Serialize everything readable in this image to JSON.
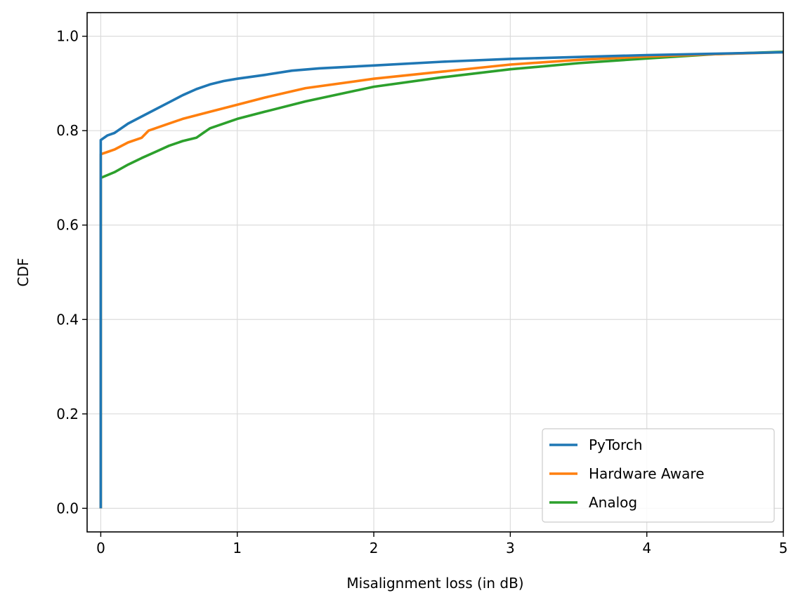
{
  "chart_data": {
    "type": "line",
    "title": "",
    "xlabel": "Misalignment loss (in dB)",
    "ylabel": "CDF",
    "xlim": [
      -0.1,
      5
    ],
    "ylim": [
      -0.05,
      1.05
    ],
    "xticks": [
      0,
      1,
      2,
      3,
      4,
      5
    ],
    "xtick_labels": [
      "0",
      "1",
      "2",
      "3",
      "4",
      "5"
    ],
    "yticks": [
      0.0,
      0.2,
      0.4,
      0.6,
      0.8,
      1.0
    ],
    "ytick_labels": [
      "0.0",
      "0.2",
      "0.4",
      "0.6",
      "0.8",
      "1.0"
    ],
    "grid": true,
    "legend_position": "lower-right",
    "series": [
      {
        "name": "PyTorch",
        "color": "#1f77b4",
        "x": [
          0,
          0,
          0.05,
          0.1,
          0.2,
          0.3,
          0.4,
          0.5,
          0.6,
          0.7,
          0.8,
          0.9,
          1.0,
          1.2,
          1.4,
          1.6,
          2.0,
          2.5,
          3.0,
          3.5,
          4.0,
          4.5,
          5.0
        ],
        "y": [
          0.0,
          0.78,
          0.79,
          0.795,
          0.815,
          0.83,
          0.845,
          0.86,
          0.875,
          0.888,
          0.898,
          0.905,
          0.91,
          0.918,
          0.927,
          0.932,
          0.938,
          0.946,
          0.952,
          0.956,
          0.96,
          0.963,
          0.966
        ]
      },
      {
        "name": "Hardware Aware",
        "color": "#ff7f0e",
        "x": [
          0,
          0,
          0.05,
          0.1,
          0.2,
          0.3,
          0.35,
          0.5,
          0.6,
          0.8,
          1.0,
          1.2,
          1.5,
          2.0,
          2.5,
          3.0,
          3.5,
          4.0,
          4.5,
          5.0
        ],
        "y": [
          0.0,
          0.75,
          0.755,
          0.76,
          0.775,
          0.785,
          0.8,
          0.815,
          0.825,
          0.84,
          0.855,
          0.87,
          0.89,
          0.91,
          0.925,
          0.94,
          0.95,
          0.957,
          0.962,
          0.966
        ]
      },
      {
        "name": "Analog",
        "color": "#2ca02c",
        "x": [
          0,
          0,
          0.1,
          0.2,
          0.3,
          0.4,
          0.5,
          0.6,
          0.7,
          0.75,
          0.8,
          1.0,
          1.2,
          1.5,
          2.0,
          2.5,
          3.0,
          3.5,
          4.0,
          4.5,
          5.0
        ],
        "y": [
          0.0,
          0.7,
          0.712,
          0.728,
          0.742,
          0.755,
          0.768,
          0.778,
          0.785,
          0.795,
          0.805,
          0.825,
          0.84,
          0.862,
          0.893,
          0.913,
          0.93,
          0.943,
          0.953,
          0.962,
          0.967
        ]
      }
    ]
  }
}
